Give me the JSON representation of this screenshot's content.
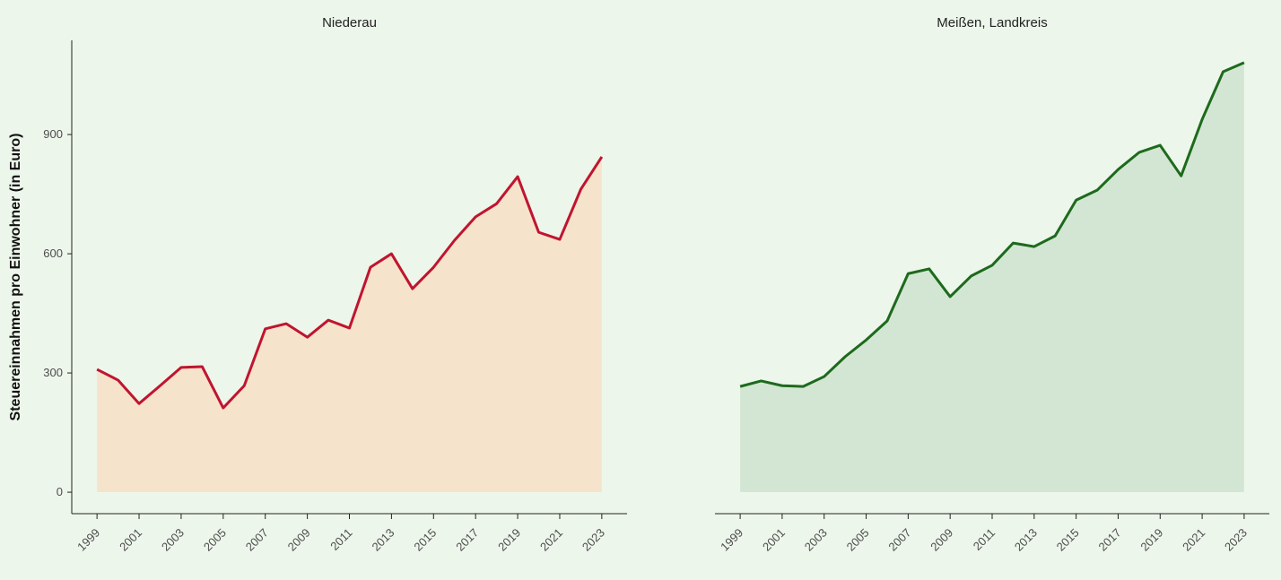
{
  "chart_data": [
    {
      "type": "area",
      "title": "Niederau",
      "y_label": "Steuereinnahmen pro Einwohner (in Euro)",
      "x": [
        1999,
        2000,
        2001,
        2002,
        2003,
        2004,
        2005,
        2006,
        2007,
        2008,
        2009,
        2010,
        2011,
        2012,
        2013,
        2014,
        2015,
        2016,
        2017,
        2018,
        2019,
        2020,
        2021,
        2022,
        2023
      ],
      "values": [
        309,
        282,
        223,
        268,
        314,
        316,
        212,
        268,
        411,
        424,
        390,
        433,
        413,
        566,
        600,
        512,
        566,
        634,
        693,
        726,
        794,
        654,
        636,
        762,
        844
      ],
      "color": "#c0152f",
      "fill": "#f5e3cc",
      "xlim": [
        1997.8,
        2024.2
      ],
      "xticks": [
        1999,
        2001,
        2003,
        2005,
        2007,
        2009,
        2011,
        2013,
        2015,
        2017,
        2019,
        2021,
        2023
      ],
      "ylim": [
        -54,
        1137
      ],
      "yticks": [
        0,
        300,
        600,
        900
      ]
    },
    {
      "type": "area",
      "title": "Meißen, Landkreis",
      "x": [
        1999,
        2000,
        2001,
        2002,
        2003,
        2004,
        2005,
        2006,
        2007,
        2008,
        2009,
        2010,
        2011,
        2012,
        2013,
        2014,
        2015,
        2016,
        2017,
        2018,
        2019,
        2020,
        2021,
        2022,
        2023
      ],
      "values": [
        266,
        280,
        268,
        266,
        291,
        341,
        383,
        431,
        550,
        562,
        492,
        544,
        571,
        627,
        618,
        645,
        735,
        760,
        812,
        855,
        873,
        796,
        938,
        1058,
        1081
      ],
      "color": "#1d6a1d",
      "fill": "#d3e6d3",
      "xlim": [
        1997.8,
        2024.2
      ],
      "xticks": [
        1999,
        2001,
        2003,
        2005,
        2007,
        2009,
        2011,
        2013,
        2015,
        2017,
        2019,
        2021,
        2023
      ],
      "ylim": [
        -54,
        1137
      ]
    }
  ]
}
